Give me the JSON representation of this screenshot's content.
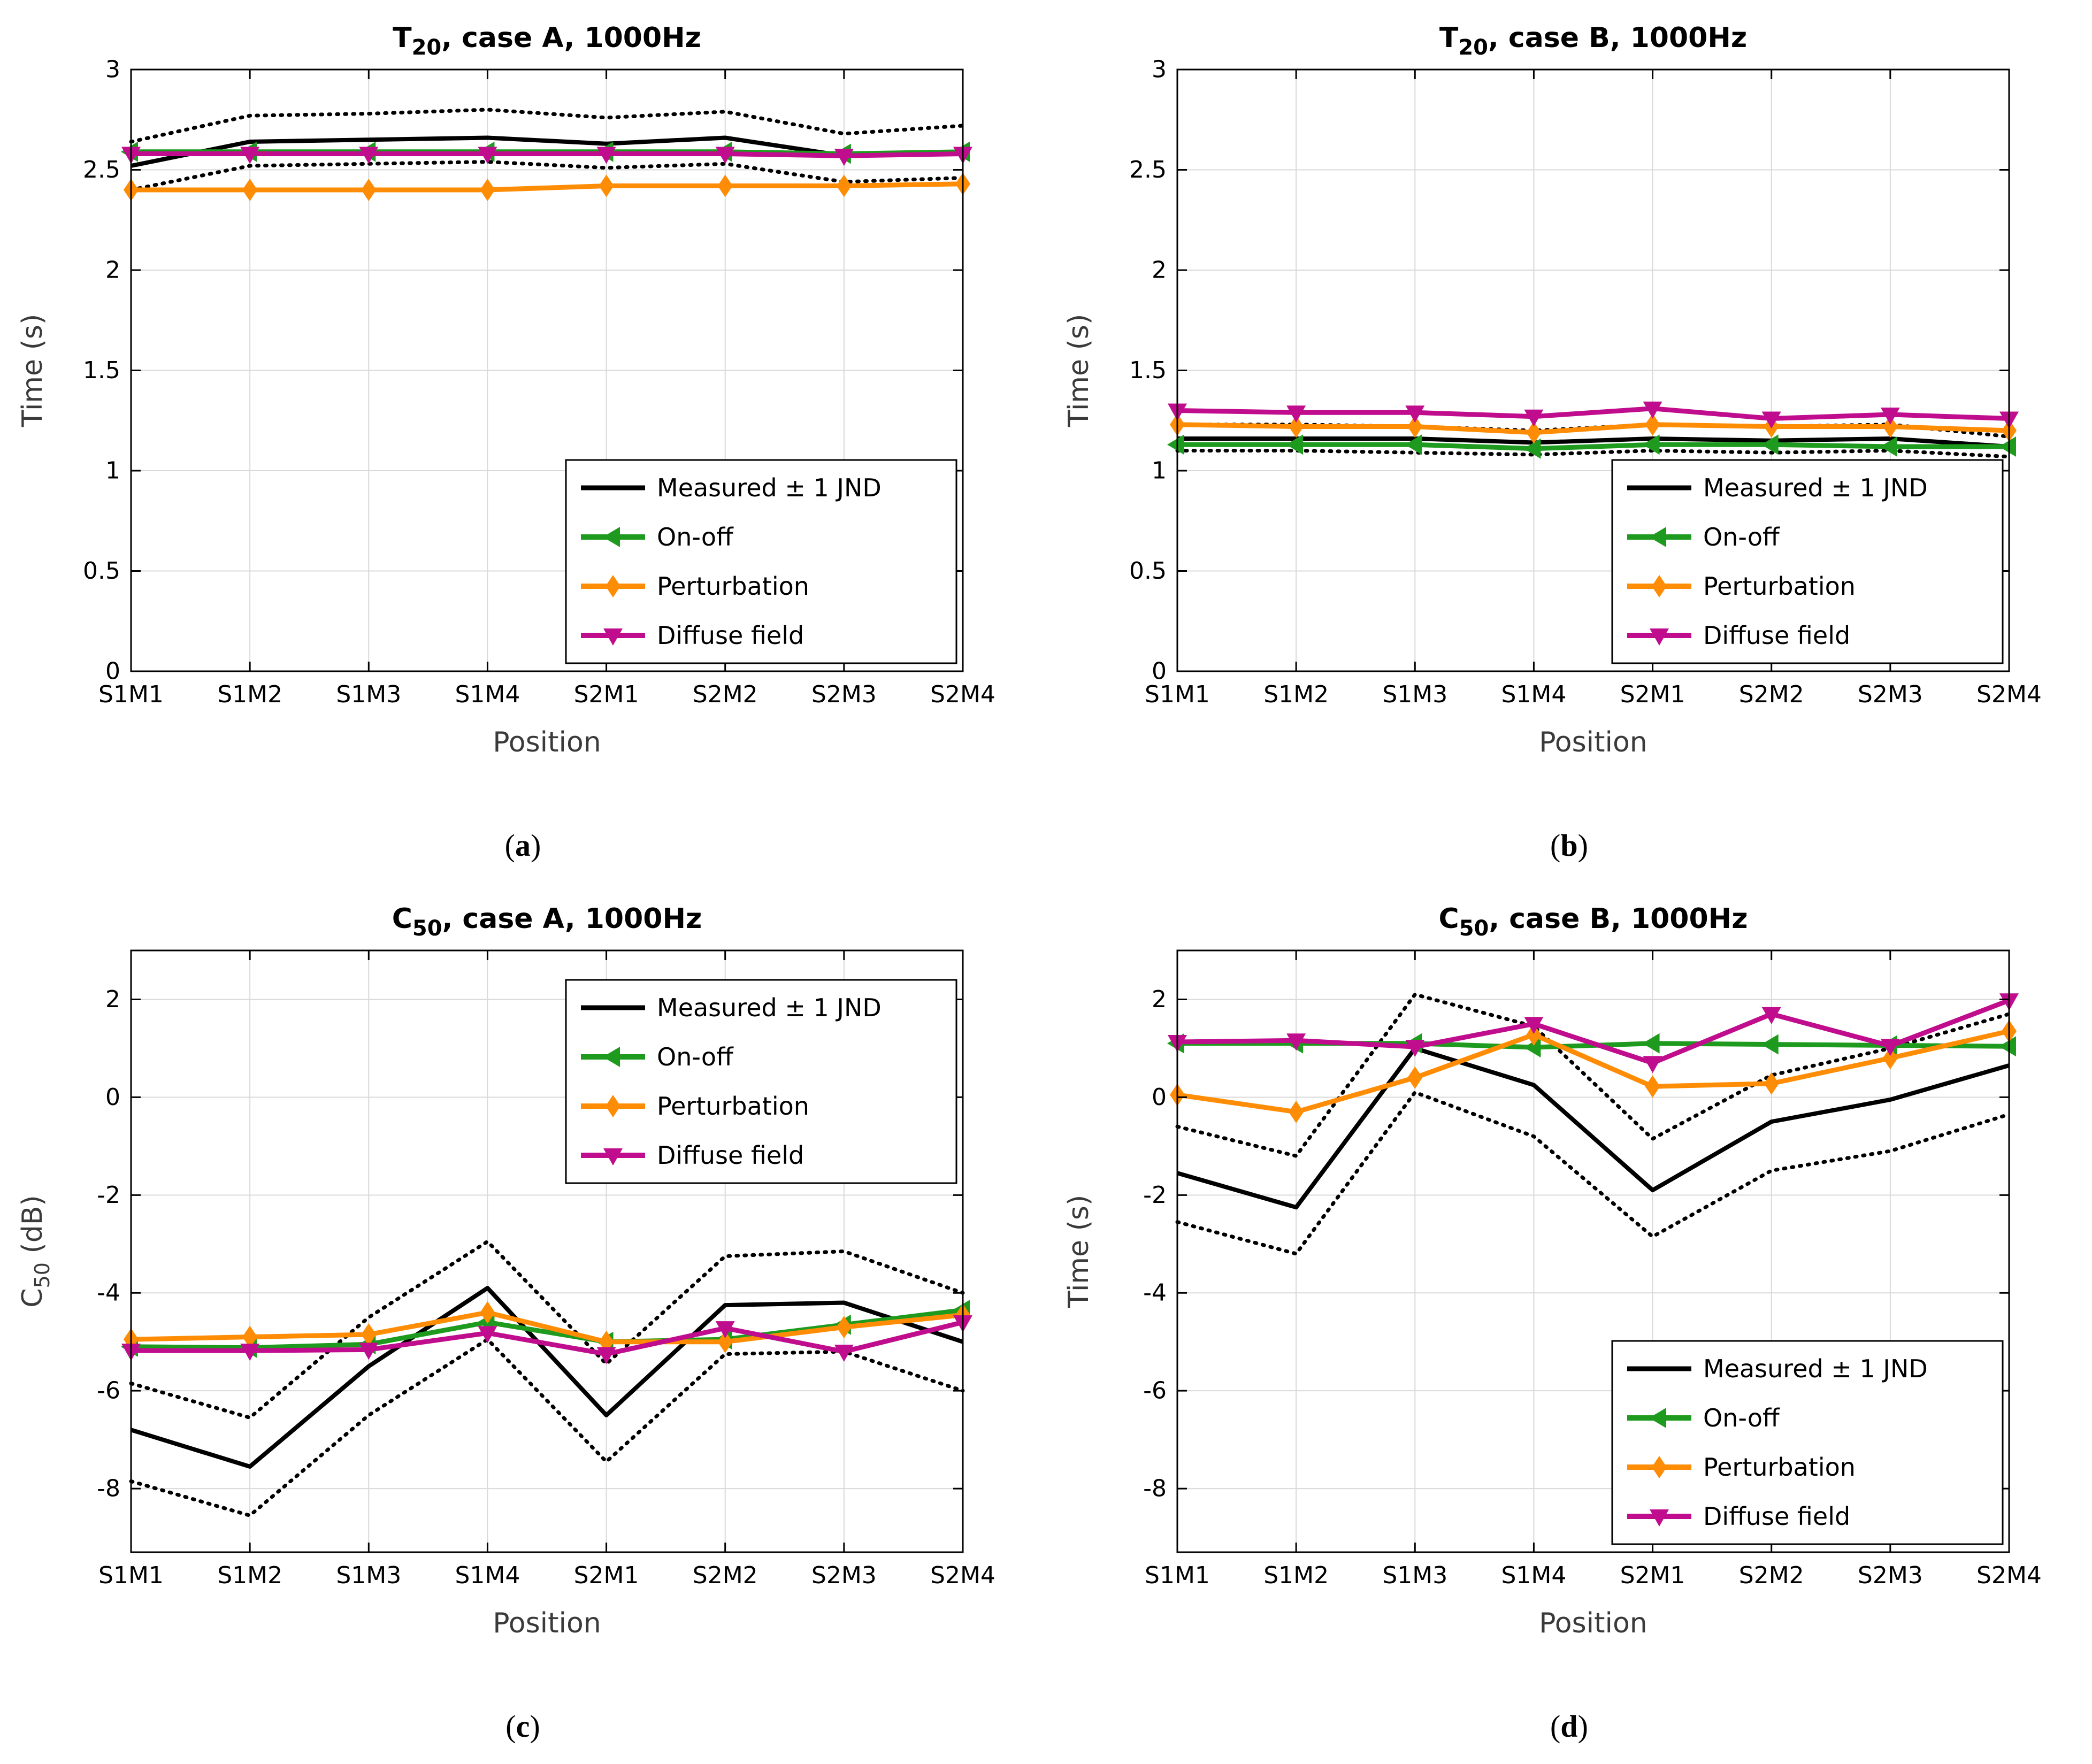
{
  "page": {
    "background": "#ffffff"
  },
  "legend": {
    "labels": [
      "Measured ± 1 JND",
      "On-off",
      "Perturbation",
      "Diffuse field"
    ]
  },
  "series_styles": [
    {
      "key": "jnd_upper",
      "label": "",
      "color": "#000000",
      "style": "dotted",
      "marker": "none",
      "width": 7,
      "in_legend": false
    },
    {
      "key": "jnd_lower",
      "label": "",
      "color": "#000000",
      "style": "dotted",
      "marker": "none",
      "width": 7,
      "in_legend": false
    },
    {
      "key": "measured",
      "label": "Measured ± 1 JND",
      "color": "#000000",
      "style": "solid",
      "marker": "none",
      "width": 8,
      "in_legend": true
    },
    {
      "key": "on_off",
      "label": "On-off",
      "color": "#1e9b1e",
      "style": "solid",
      "marker": "triangle-left",
      "width": 9,
      "in_legend": true
    },
    {
      "key": "perturbation",
      "label": "Perturbation",
      "color": "#ff8c05",
      "style": "solid",
      "marker": "diamond",
      "width": 9,
      "in_legend": true
    },
    {
      "key": "diffuse",
      "label": "Diffuse field",
      "color": "#c00d8d",
      "style": "solid",
      "marker": "triangle-down",
      "width": 9,
      "in_legend": true
    }
  ],
  "chart_data": [
    {
      "type": "line",
      "caption_letter": "a",
      "title": {
        "pre": "T",
        "sub": "20",
        "post": ", case A, 1000Hz"
      },
      "xlabel": "Position",
      "ylabel": {
        "pre": "Time (s)",
        "sub": "",
        "post": ""
      },
      "categories": [
        "S1M1",
        "S1M2",
        "S1M3",
        "S1M4",
        "S2M1",
        "S2M2",
        "S2M3",
        "S2M4"
      ],
      "ylim": [
        0,
        3
      ],
      "yticks": [
        0,
        0.5,
        1,
        1.5,
        2,
        2.5,
        3
      ],
      "ytick_labels": [
        "0",
        "0.5",
        "1",
        "1.5",
        "2",
        "2.5",
        "3"
      ],
      "grid": true,
      "legend_position": "bottom-right",
      "values": {
        "measured": [
          2.52,
          2.64,
          2.65,
          2.66,
          2.63,
          2.66,
          2.57,
          2.58
        ],
        "jnd_upper": [
          2.64,
          2.77,
          2.78,
          2.8,
          2.76,
          2.79,
          2.68,
          2.72
        ],
        "jnd_lower": [
          2.4,
          2.52,
          2.53,
          2.54,
          2.51,
          2.53,
          2.44,
          2.46
        ],
        "on_off": [
          2.59,
          2.59,
          2.59,
          2.59,
          2.59,
          2.59,
          2.58,
          2.59
        ],
        "perturbation": [
          2.4,
          2.4,
          2.4,
          2.4,
          2.42,
          2.42,
          2.42,
          2.43
        ],
        "diffuse": [
          2.58,
          2.58,
          2.58,
          2.58,
          2.58,
          2.58,
          2.57,
          2.58
        ]
      }
    },
    {
      "type": "line",
      "caption_letter": "b",
      "title": {
        "pre": "T",
        "sub": "20",
        "post": ", case B, 1000Hz"
      },
      "xlabel": "Position",
      "ylabel": {
        "pre": "Time (s)",
        "sub": "",
        "post": ""
      },
      "categories": [
        "S1M1",
        "S1M2",
        "S1M3",
        "S1M4",
        "S2M1",
        "S2M2",
        "S2M3",
        "S2M4"
      ],
      "ylim": [
        0,
        3
      ],
      "yticks": [
        0,
        0.5,
        1,
        1.5,
        2,
        2.5,
        3
      ],
      "ytick_labels": [
        "0",
        "0.5",
        "1",
        "1.5",
        "2",
        "2.5",
        "3"
      ],
      "grid": true,
      "legend_position": "bottom-right",
      "values": {
        "measured": [
          1.16,
          1.16,
          1.16,
          1.14,
          1.16,
          1.15,
          1.16,
          1.12
        ],
        "jnd_upper": [
          1.23,
          1.23,
          1.22,
          1.2,
          1.23,
          1.22,
          1.23,
          1.17
        ],
        "jnd_lower": [
          1.1,
          1.1,
          1.09,
          1.08,
          1.1,
          1.09,
          1.1,
          1.07
        ],
        "on_off": [
          1.13,
          1.13,
          1.13,
          1.11,
          1.13,
          1.13,
          1.12,
          1.12
        ],
        "perturbation": [
          1.23,
          1.22,
          1.22,
          1.19,
          1.23,
          1.22,
          1.22,
          1.2
        ],
        "diffuse": [
          1.3,
          1.29,
          1.29,
          1.27,
          1.31,
          1.26,
          1.28,
          1.26
        ]
      }
    },
    {
      "type": "line",
      "caption_letter": "c",
      "title": {
        "pre": "C",
        "sub": "50",
        "post": ", case A, 1000Hz"
      },
      "xlabel": "Position",
      "ylabel": {
        "pre": "C",
        "sub": "50",
        "post": " (dB)"
      },
      "categories": [
        "S1M1",
        "S1M2",
        "S1M3",
        "S1M4",
        "S2M1",
        "S2M2",
        "S2M3",
        "S2M4"
      ],
      "ylim": [
        -9.3,
        3.0
      ],
      "yticks": [
        2,
        0,
        -2,
        -4,
        -6,
        -8
      ],
      "ytick_labels": [
        "2",
        "0",
        "-2",
        "-4",
        "-6",
        "-8"
      ],
      "grid": true,
      "legend_position": "top-right",
      "values": {
        "measured": [
          -6.8,
          -7.55,
          -5.5,
          -3.9,
          -6.5,
          -4.25,
          -4.2,
          -5.0
        ],
        "jnd_upper": [
          -5.85,
          -6.55,
          -4.5,
          -2.95,
          -5.45,
          -3.25,
          -3.15,
          -4.0
        ],
        "jnd_lower": [
          -7.85,
          -8.55,
          -6.5,
          -4.95,
          -7.45,
          -5.25,
          -5.2,
          -6.0
        ],
        "on_off": [
          -5.1,
          -5.12,
          -5.05,
          -4.6,
          -5.0,
          -4.95,
          -4.65,
          -4.35
        ],
        "perturbation": [
          -4.95,
          -4.9,
          -4.85,
          -4.4,
          -5.0,
          -5.0,
          -4.7,
          -4.45
        ],
        "diffuse": [
          -5.18,
          -5.18,
          -5.16,
          -4.82,
          -5.25,
          -4.72,
          -5.2,
          -4.6
        ]
      }
    },
    {
      "type": "line",
      "caption_letter": "d",
      "title": {
        "pre": "C",
        "sub": "50",
        "post": ", case B, 1000Hz"
      },
      "xlabel": "Position",
      "ylabel": {
        "pre": "Time (s)",
        "sub": "",
        "post": ""
      },
      "categories": [
        "S1M1",
        "S1M2",
        "S1M3",
        "S1M4",
        "S2M1",
        "S2M2",
        "S2M3",
        "S2M4"
      ],
      "ylim": [
        -9.3,
        3.0
      ],
      "yticks": [
        2,
        0,
        -2,
        -4,
        -6,
        -8
      ],
      "ytick_labels": [
        "2",
        "0",
        "-2",
        "-4",
        "-6",
        "-8"
      ],
      "grid": true,
      "legend_position": "bottom-right",
      "values": {
        "measured": [
          -1.55,
          -2.25,
          1.0,
          0.25,
          -1.9,
          -0.5,
          -0.05,
          0.65
        ],
        "jnd_upper": [
          -0.6,
          -1.2,
          2.1,
          1.45,
          -0.85,
          0.45,
          1.0,
          1.7
        ],
        "jnd_lower": [
          -2.55,
          -3.2,
          0.1,
          -0.8,
          -2.85,
          -1.5,
          -1.1,
          -0.35
        ],
        "on_off": [
          1.1,
          1.1,
          1.1,
          1.02,
          1.1,
          1.08,
          1.06,
          1.04
        ],
        "perturbation": [
          0.05,
          -0.3,
          0.4,
          1.28,
          0.22,
          0.28,
          0.8,
          1.35
        ],
        "diffuse": [
          1.13,
          1.16,
          1.03,
          1.5,
          0.7,
          1.7,
          1.05,
          1.98
        ]
      }
    }
  ]
}
